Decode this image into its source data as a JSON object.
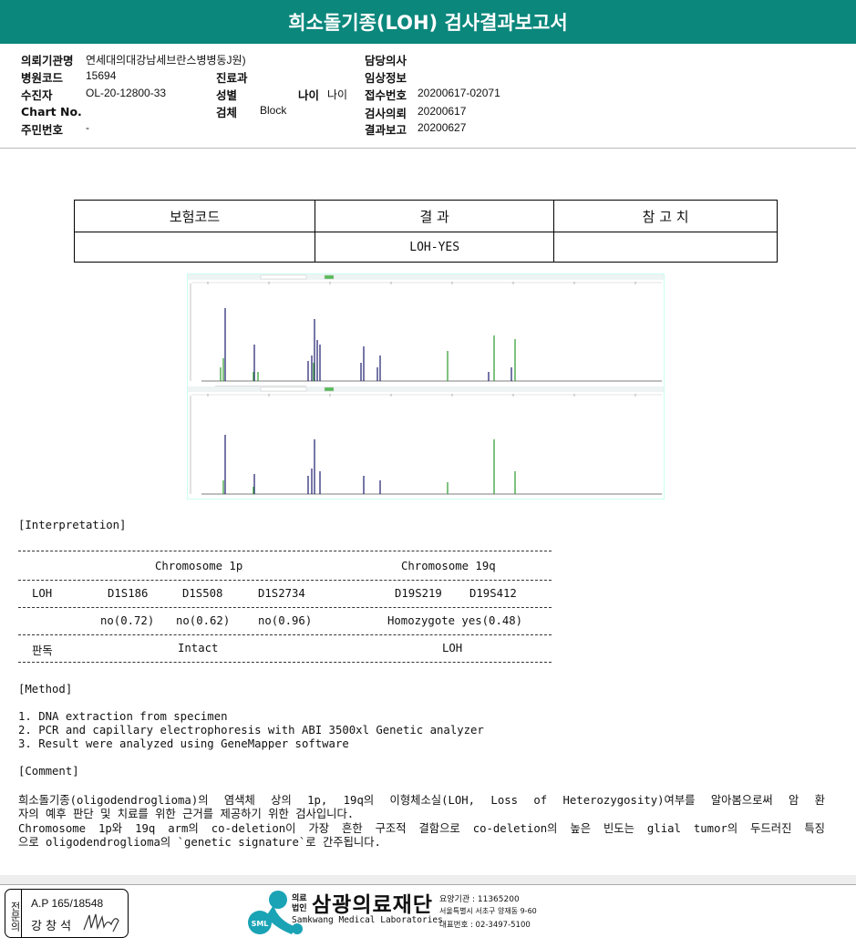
{
  "title": "희소돌기종(LOH) 검사결과보고서",
  "info": {
    "institution_label": "의뢰기관명",
    "institution": "연세대의대강남세브란스병병동J원)",
    "hospital_code_label": "병원코드",
    "hospital_code": "15694",
    "patient_label": "수진자",
    "patient": "OL-20-12800-33",
    "chart_label": "Chart No.",
    "chart": "",
    "id_label": "주민번호",
    "id": "-",
    "dept_label": "진료과",
    "dept": "",
    "sex_label": "성별",
    "sex": "",
    "age_label": "나이",
    "age": "나이",
    "specimen_label": "검체",
    "specimen": "Block",
    "doctor_label": "담당의사",
    "doctor": "",
    "clinical_label": "임상정보",
    "clinical": "",
    "receipt_label": "접수번호",
    "receipt": "20200617-02071",
    "request_label": "검사의뢰",
    "request": "20200617",
    "report_label": "결과보고",
    "report": "20200627"
  },
  "result_table": {
    "headers": [
      "보험코드",
      "결 과",
      "참 고 치"
    ],
    "row": [
      "",
      "LOH-YES",
      ""
    ]
  },
  "interpretation": {
    "heading": "[Interpretation]",
    "chr1p": "Chromosome 1p",
    "chr19q": "Chromosome 19q",
    "loh_label": "LOH",
    "markers": [
      "D1S186",
      "D1S508",
      "D1S2734",
      "D19S219",
      "D19S412"
    ],
    "values_1p": [
      "no(0.72)",
      "no(0.62)",
      "no(0.96)"
    ],
    "value_19q": "Homozygote yes(0.48)",
    "verdict_label": "판독",
    "verdict_1p": "Intact",
    "verdict_19q": "LOH"
  },
  "method": {
    "heading": "[Method]",
    "items": [
      "1. DNA extraction from specimen",
      "2. PCR and capillary electrophoresis with ABI 3500xl Genetic analyzer",
      "3. Result were analyzed using GeneMapper software"
    ]
  },
  "comment": {
    "heading": "[Comment]",
    "lines": [
      "희소돌기종(oligodendroglioma)의 염색체 상의 1p, 19q의 이형체소실(LOH, Loss of Heterozygosity)여부를 알아봄으로써 암 환",
      "자의 예후 판단 및 치료를 위한 근거를 제공하기 위한 검사입니다.",
      "Chromosome 1p와 19q arm의 co-deletion이 가장 흔한 구조적 결함으로 co-deletion의 높은 빈도는 glial tumor의 두드러진 특징",
      "으로 oligodendroglioma의 `genetic signature`로 간주됩니다."
    ]
  },
  "footer": {
    "stamp_label": "전문의",
    "ap": "A.P 165/18548",
    "doctor_name": "강 창 석",
    "logo_prefix_top": "의료",
    "logo_prefix_bottom": "법인",
    "org_name": "삼광의료재단",
    "org_name_en": "Samkwang Medical Laboratories",
    "logo_badge": "SML",
    "code": "요양기관 : 11365200",
    "address": "서울특별시 서초구 양재동 9-60",
    "phone": "대표번호 : 02-3497-5100"
  },
  "colors": {
    "title_bar": "#0b877c",
    "logo": "#1aa3b5"
  }
}
